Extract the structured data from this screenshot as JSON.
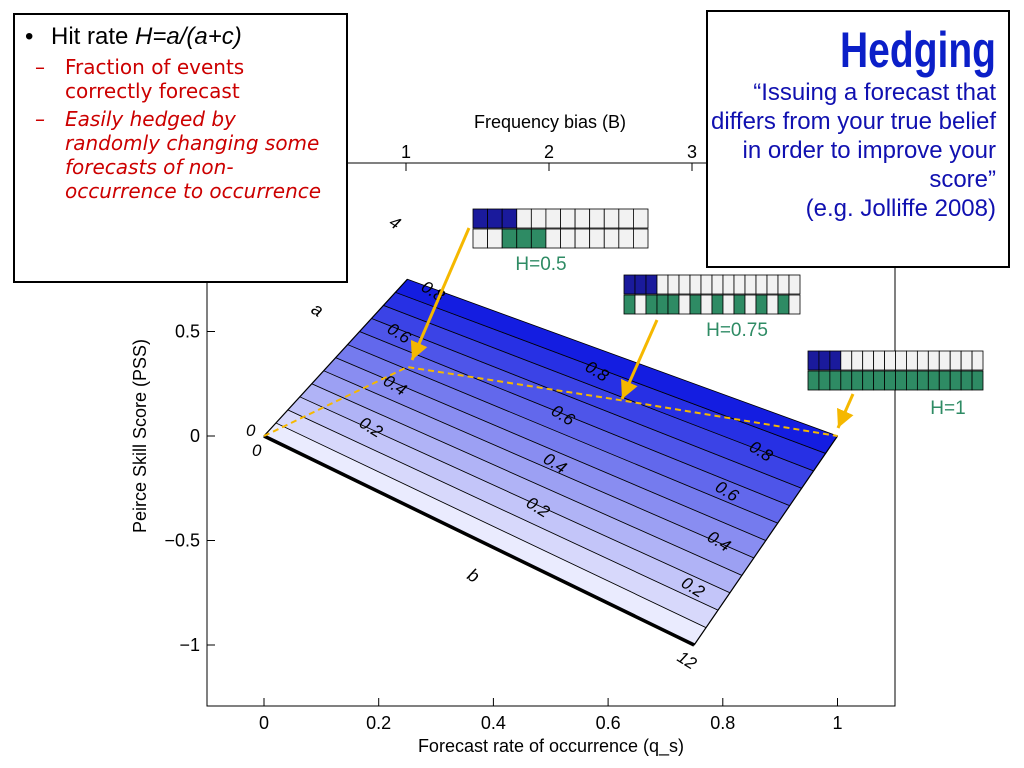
{
  "bullets": {
    "main_prefix": "Hit rate ",
    "main_formula": "H=a/(a+c)",
    "sub": [
      {
        "text": "Fraction of events correctly forecast",
        "italic": false
      },
      {
        "text": "Easily hedged by randomly changing some forecasts of non-occurrence to occurrence",
        "italic": true
      }
    ]
  },
  "hedging": {
    "title": "Hedging",
    "quote": "“Issuing a forecast that differs from your true belief in order to improve your score”",
    "citation": "(e.g. Jolliffe 2008)"
  },
  "chart_data": {
    "type": "contour",
    "xlabel": "Forecast rate of occurrence (q_s)",
    "ylabel": "Peirce Skill Score (PSS)",
    "top_axis_label": "Frequency bias (B)",
    "xlim": [
      -0.1,
      1.1
    ],
    "ylim": [
      -1.3,
      1.2
    ],
    "x_ticks": [
      0,
      0.2,
      0.4,
      0.6,
      0.8,
      1
    ],
    "x_tick_labels": [
      "0",
      "0.2",
      "0.4",
      "0.6",
      "0.8",
      "1"
    ],
    "y_ticks": [
      -1,
      -0.5,
      0,
      0.5
    ],
    "y_tick_labels": [
      "−1",
      "−0.5",
      "0",
      "0.5"
    ],
    "top_ticks": [
      1,
      2,
      3
    ],
    "top_tick_labels": [
      "1",
      "2",
      "3"
    ],
    "corner_labels": [
      {
        "id": "a",
        "text": "a"
      },
      {
        "id": "b",
        "text": "b"
      },
      {
        "id": "c0",
        "text": "0"
      },
      {
        "id": "d0",
        "text": "0"
      },
      {
        "id": "four",
        "text": "4"
      },
      {
        "id": "twelve",
        "text": "12"
      }
    ],
    "contour_labels": [
      "0.2",
      "0.4",
      "0.6",
      "0.8",
      "0.2",
      "0.4",
      "0.6",
      "0.8",
      "0.2",
      "0.4",
      "0.6",
      "0.8"
    ],
    "hedging_path": [
      {
        "qs": 0,
        "pss": 0
      },
      {
        "qs": 0.25,
        "pss": 0.33
      },
      {
        "qs": 0.625,
        "pss": 0.17
      },
      {
        "qs": 1,
        "pss": 0
      }
    ],
    "panels": [
      {
        "label": "H=0.5",
        "top": [
          1,
          1,
          1,
          0,
          0,
          0,
          0,
          0,
          0,
          0,
          0,
          0
        ],
        "bottom": [
          0,
          0,
          1,
          1,
          1,
          0,
          0,
          0,
          0,
          0,
          0,
          0
        ]
      },
      {
        "label": "H=0.75",
        "top": [
          1,
          1,
          1,
          0,
          0,
          0,
          0,
          0,
          0,
          0,
          0,
          0,
          0,
          0,
          0,
          0
        ],
        "bottom": [
          1,
          0,
          1,
          1,
          1,
          0,
          1,
          0,
          1,
          0,
          1,
          0,
          1,
          0,
          1,
          0
        ]
      },
      {
        "label": "H=1",
        "top": [
          1,
          1,
          1,
          0,
          0,
          0,
          0,
          0,
          0,
          0,
          0,
          0,
          0,
          0,
          0,
          0
        ],
        "bottom": [
          1,
          1,
          1,
          1,
          1,
          1,
          1,
          1,
          1,
          1,
          1,
          1,
          1,
          1,
          1,
          1
        ]
      }
    ],
    "colors": {
      "fill_dark": "#0a14e0",
      "fill_light": "#f4f4ff",
      "path": "#f5b800",
      "arrow": "#f5b800",
      "top_cell": "#1a1a9c",
      "bottom_cell": "#2e8b64",
      "empty_cell": "#f2f2f2",
      "panel_label": "#2e8b64"
    }
  }
}
